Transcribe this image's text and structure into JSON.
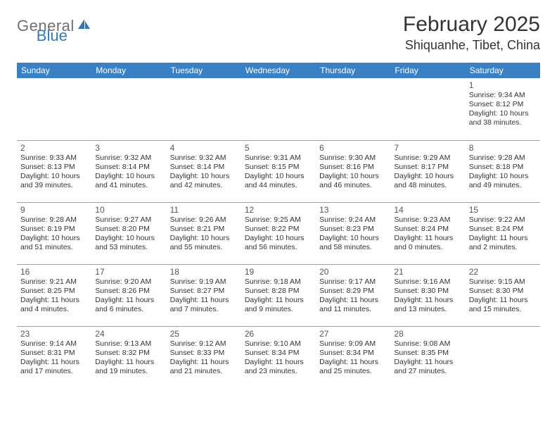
{
  "logo": {
    "word1": "General",
    "word2": "Blue",
    "icon_color": "#2f78bd",
    "text1_color": "#6f6f6f",
    "text2_color": "#2f78bd"
  },
  "title": "February 2025",
  "location": "Shiquanhe, Tibet, China",
  "colors": {
    "header_bg": "#3a80c4",
    "header_text": "#ffffff",
    "cell_border": "#9aa0a6",
    "body_text": "#333333",
    "daynum_text": "#555555",
    "page_bg": "#ffffff"
  },
  "fonts": {
    "title_pt": 30,
    "location_pt": 18,
    "header_pt": 12,
    "daynum_pt": 12,
    "body_pt": 10.5
  },
  "weekdays": [
    "Sunday",
    "Monday",
    "Tuesday",
    "Wednesday",
    "Thursday",
    "Friday",
    "Saturday"
  ],
  "grid": [
    [
      null,
      null,
      null,
      null,
      null,
      null,
      {
        "n": "1",
        "sr": "Sunrise: 9:34 AM",
        "ss": "Sunset: 8:12 PM",
        "d1": "Daylight: 10 hours",
        "d2": "and 38 minutes."
      }
    ],
    [
      {
        "n": "2",
        "sr": "Sunrise: 9:33 AM",
        "ss": "Sunset: 8:13 PM",
        "d1": "Daylight: 10 hours",
        "d2": "and 39 minutes."
      },
      {
        "n": "3",
        "sr": "Sunrise: 9:32 AM",
        "ss": "Sunset: 8:14 PM",
        "d1": "Daylight: 10 hours",
        "d2": "and 41 minutes."
      },
      {
        "n": "4",
        "sr": "Sunrise: 9:32 AM",
        "ss": "Sunset: 8:14 PM",
        "d1": "Daylight: 10 hours",
        "d2": "and 42 minutes."
      },
      {
        "n": "5",
        "sr": "Sunrise: 9:31 AM",
        "ss": "Sunset: 8:15 PM",
        "d1": "Daylight: 10 hours",
        "d2": "and 44 minutes."
      },
      {
        "n": "6",
        "sr": "Sunrise: 9:30 AM",
        "ss": "Sunset: 8:16 PM",
        "d1": "Daylight: 10 hours",
        "d2": "and 46 minutes."
      },
      {
        "n": "7",
        "sr": "Sunrise: 9:29 AM",
        "ss": "Sunset: 8:17 PM",
        "d1": "Daylight: 10 hours",
        "d2": "and 48 minutes."
      },
      {
        "n": "8",
        "sr": "Sunrise: 9:28 AM",
        "ss": "Sunset: 8:18 PM",
        "d1": "Daylight: 10 hours",
        "d2": "and 49 minutes."
      }
    ],
    [
      {
        "n": "9",
        "sr": "Sunrise: 9:28 AM",
        "ss": "Sunset: 8:19 PM",
        "d1": "Daylight: 10 hours",
        "d2": "and 51 minutes."
      },
      {
        "n": "10",
        "sr": "Sunrise: 9:27 AM",
        "ss": "Sunset: 8:20 PM",
        "d1": "Daylight: 10 hours",
        "d2": "and 53 minutes."
      },
      {
        "n": "11",
        "sr": "Sunrise: 9:26 AM",
        "ss": "Sunset: 8:21 PM",
        "d1": "Daylight: 10 hours",
        "d2": "and 55 minutes."
      },
      {
        "n": "12",
        "sr": "Sunrise: 9:25 AM",
        "ss": "Sunset: 8:22 PM",
        "d1": "Daylight: 10 hours",
        "d2": "and 56 minutes."
      },
      {
        "n": "13",
        "sr": "Sunrise: 9:24 AM",
        "ss": "Sunset: 8:23 PM",
        "d1": "Daylight: 10 hours",
        "d2": "and 58 minutes."
      },
      {
        "n": "14",
        "sr": "Sunrise: 9:23 AM",
        "ss": "Sunset: 8:24 PM",
        "d1": "Daylight: 11 hours",
        "d2": "and 0 minutes."
      },
      {
        "n": "15",
        "sr": "Sunrise: 9:22 AM",
        "ss": "Sunset: 8:24 PM",
        "d1": "Daylight: 11 hours",
        "d2": "and 2 minutes."
      }
    ],
    [
      {
        "n": "16",
        "sr": "Sunrise: 9:21 AM",
        "ss": "Sunset: 8:25 PM",
        "d1": "Daylight: 11 hours",
        "d2": "and 4 minutes."
      },
      {
        "n": "17",
        "sr": "Sunrise: 9:20 AM",
        "ss": "Sunset: 8:26 PM",
        "d1": "Daylight: 11 hours",
        "d2": "and 6 minutes."
      },
      {
        "n": "18",
        "sr": "Sunrise: 9:19 AM",
        "ss": "Sunset: 8:27 PM",
        "d1": "Daylight: 11 hours",
        "d2": "and 7 minutes."
      },
      {
        "n": "19",
        "sr": "Sunrise: 9:18 AM",
        "ss": "Sunset: 8:28 PM",
        "d1": "Daylight: 11 hours",
        "d2": "and 9 minutes."
      },
      {
        "n": "20",
        "sr": "Sunrise: 9:17 AM",
        "ss": "Sunset: 8:29 PM",
        "d1": "Daylight: 11 hours",
        "d2": "and 11 minutes."
      },
      {
        "n": "21",
        "sr": "Sunrise: 9:16 AM",
        "ss": "Sunset: 8:30 PM",
        "d1": "Daylight: 11 hours",
        "d2": "and 13 minutes."
      },
      {
        "n": "22",
        "sr": "Sunrise: 9:15 AM",
        "ss": "Sunset: 8:30 PM",
        "d1": "Daylight: 11 hours",
        "d2": "and 15 minutes."
      }
    ],
    [
      {
        "n": "23",
        "sr": "Sunrise: 9:14 AM",
        "ss": "Sunset: 8:31 PM",
        "d1": "Daylight: 11 hours",
        "d2": "and 17 minutes."
      },
      {
        "n": "24",
        "sr": "Sunrise: 9:13 AM",
        "ss": "Sunset: 8:32 PM",
        "d1": "Daylight: 11 hours",
        "d2": "and 19 minutes."
      },
      {
        "n": "25",
        "sr": "Sunrise: 9:12 AM",
        "ss": "Sunset: 8:33 PM",
        "d1": "Daylight: 11 hours",
        "d2": "and 21 minutes."
      },
      {
        "n": "26",
        "sr": "Sunrise: 9:10 AM",
        "ss": "Sunset: 8:34 PM",
        "d1": "Daylight: 11 hours",
        "d2": "and 23 minutes."
      },
      {
        "n": "27",
        "sr": "Sunrise: 9:09 AM",
        "ss": "Sunset: 8:34 PM",
        "d1": "Daylight: 11 hours",
        "d2": "and 25 minutes."
      },
      {
        "n": "28",
        "sr": "Sunrise: 9:08 AM",
        "ss": "Sunset: 8:35 PM",
        "d1": "Daylight: 11 hours",
        "d2": "and 27 minutes."
      },
      null
    ]
  ]
}
